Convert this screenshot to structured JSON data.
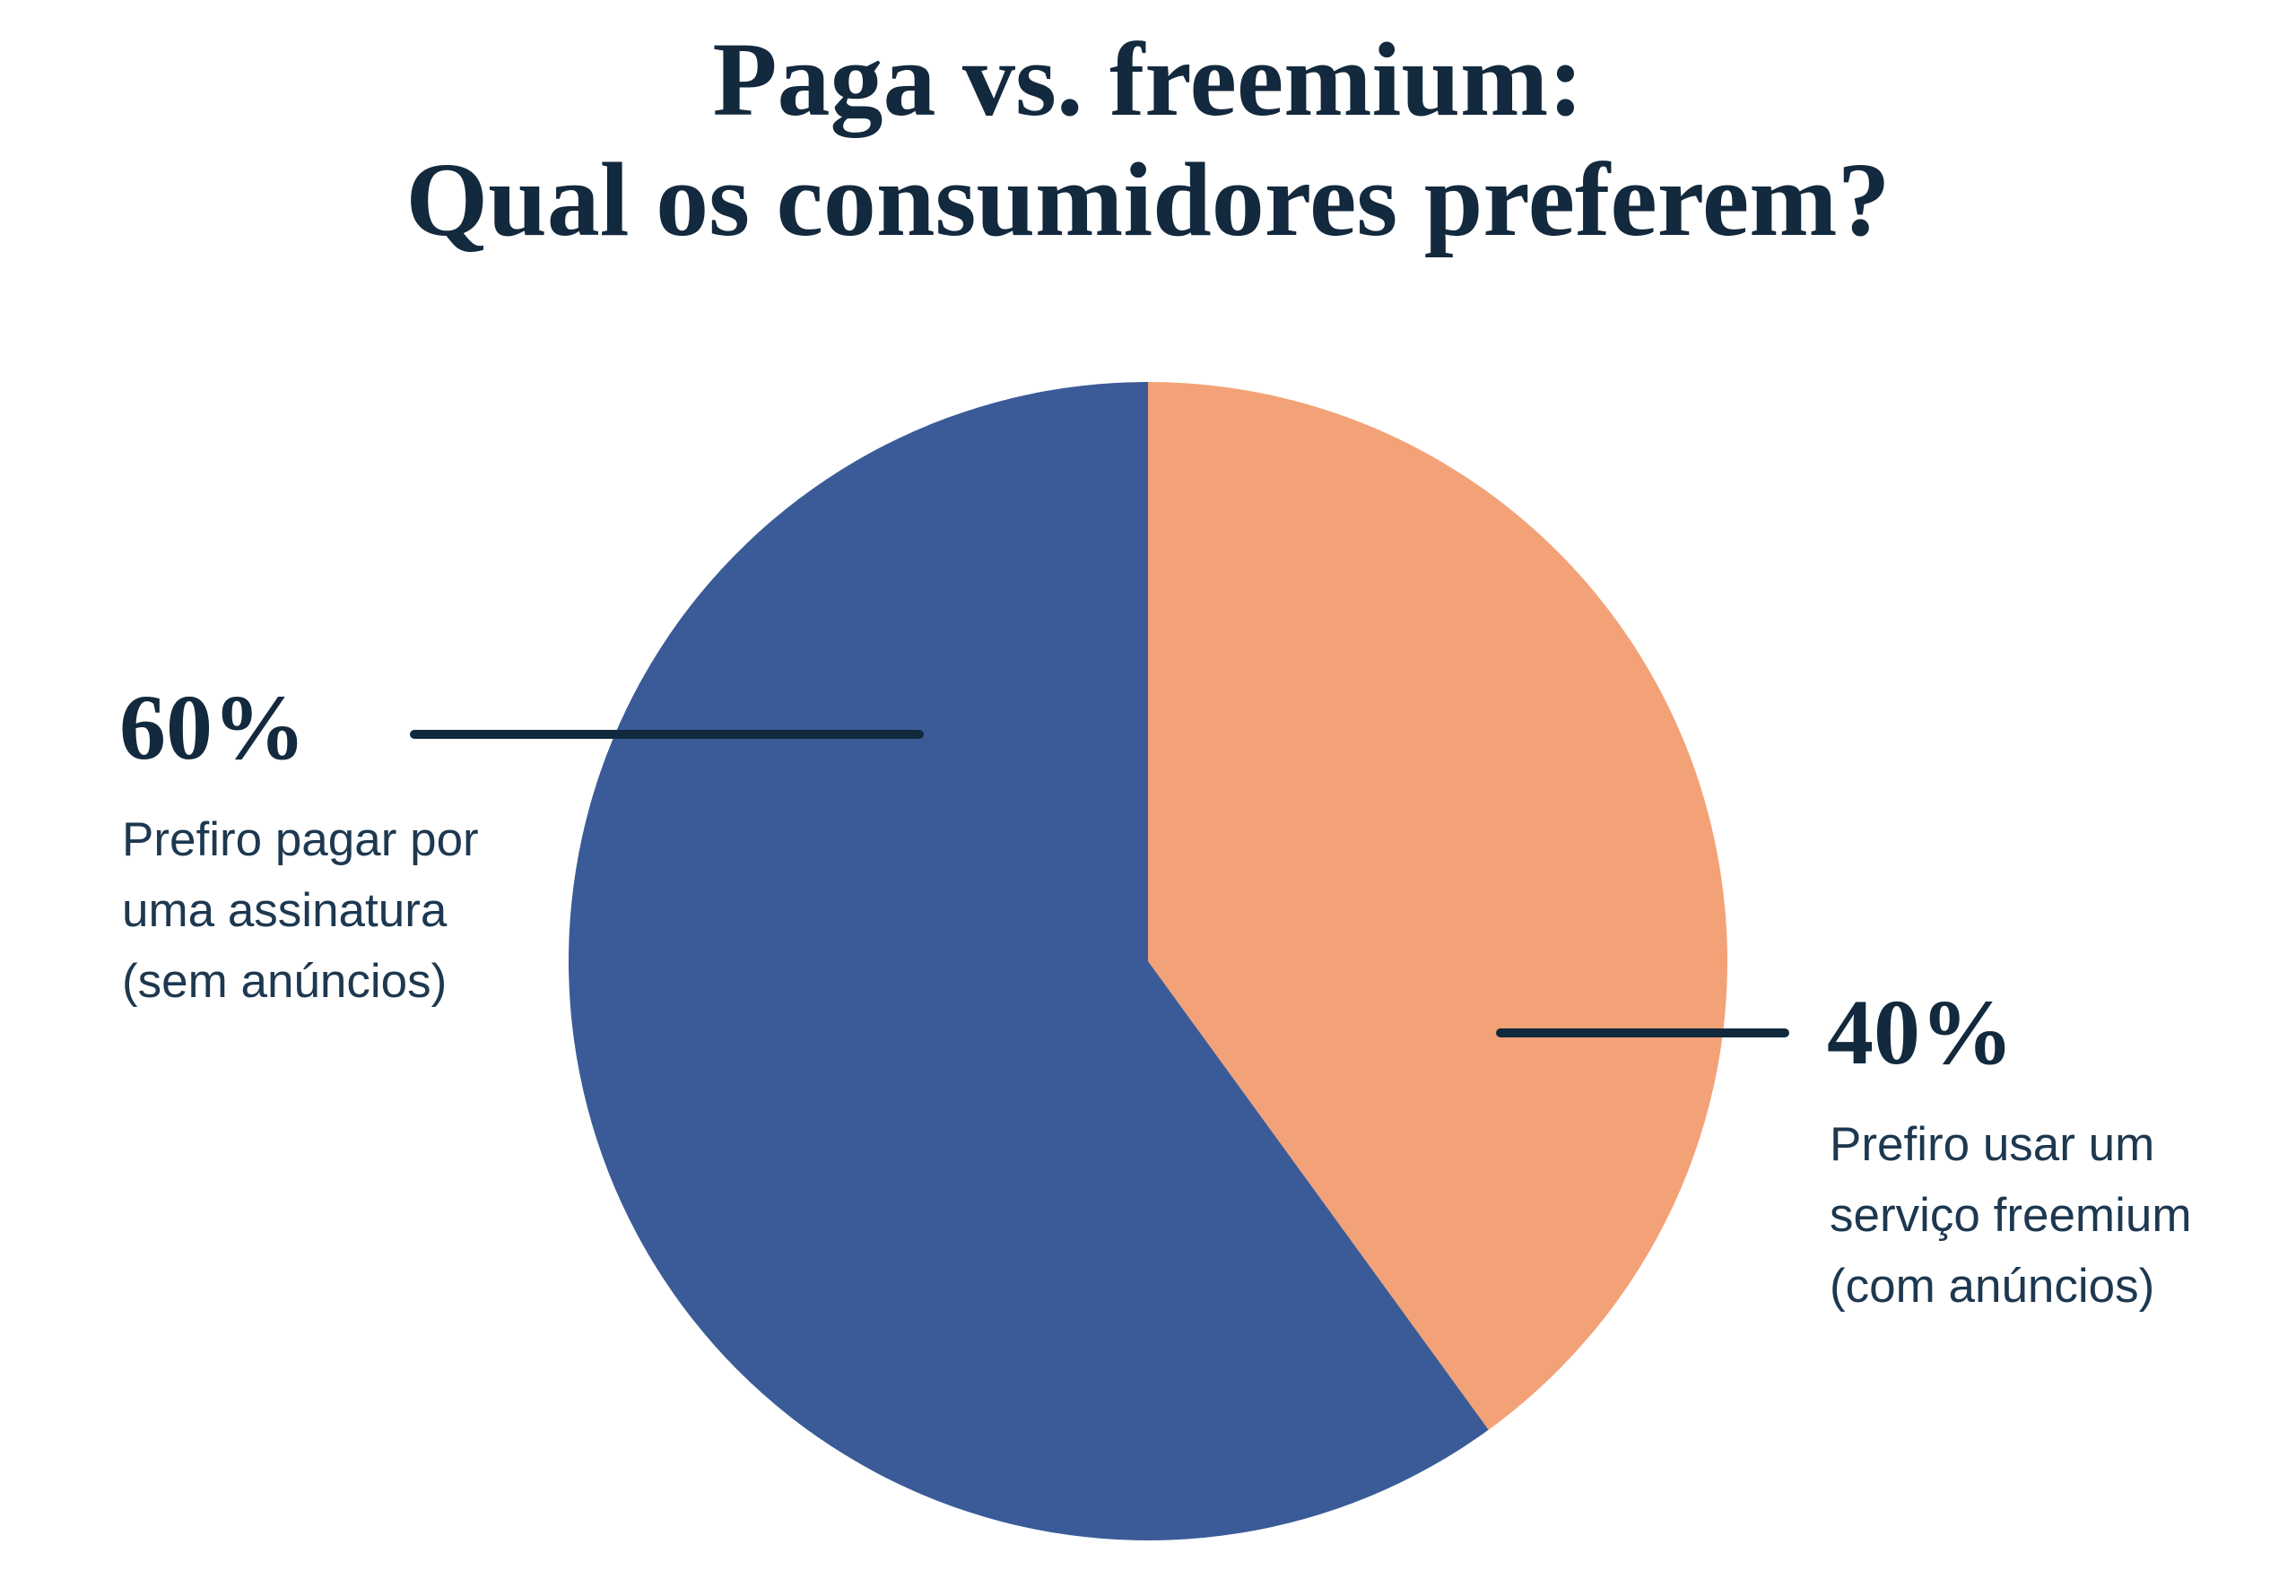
{
  "title": {
    "line1": "Paga vs. freemium:",
    "line2": "Qual os consumidores preferem?"
  },
  "chart_data": {
    "type": "pie",
    "title": "Paga vs. freemium: Qual os consumidores preferem?",
    "unit": "%",
    "start_angle_deg": 0,
    "direction": "clockwise",
    "grid": false,
    "legend_position": "side-callouts",
    "slices": [
      {
        "label": "Prefiro usar um serviço freemium (com anúncios)",
        "value": 40,
        "pct_label": "40%",
        "color": "#F3A277",
        "callout_side": "right"
      },
      {
        "label": "Prefiro pagar por uma assinatura (sem anúncios)",
        "value": 60,
        "pct_label": "60%",
        "color": "#3A5B98",
        "callout_side": "left"
      }
    ]
  },
  "callouts": {
    "left": {
      "pct": "60%",
      "lines": [
        "Prefiro pagar por",
        "uma assinatura",
        "(sem anúncios)"
      ]
    },
    "right": {
      "pct": "40%",
      "lines": [
        "Prefiro usar um",
        "serviço freemium",
        "(com anúncios)"
      ]
    }
  },
  "colors": {
    "background": "#FFFFFF",
    "heading": "#13293D",
    "body_text": "#1D3850",
    "connector": "#10293C",
    "slice_paid": "#3A5B98",
    "slice_freemium": "#F3A277"
  }
}
